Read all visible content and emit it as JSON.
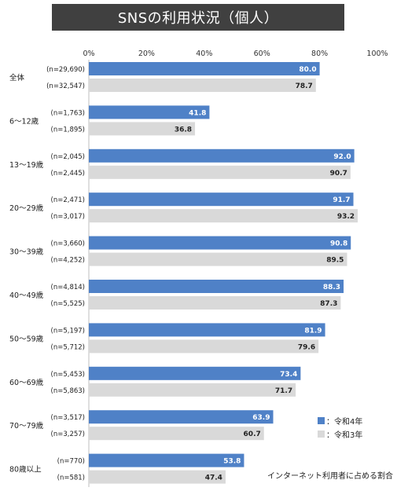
{
  "title": "SNSの利用状況（個人）",
  "note": "インターネット利用者に占める割合",
  "colors": {
    "r4": "#4f81c7",
    "r3": "#d9d9d9",
    "grid": "#bfbfbf",
    "title_bg": "#404040"
  },
  "chart_data": {
    "type": "bar",
    "orientation": "horizontal",
    "xlim": [
      0,
      100
    ],
    "x_ticks": [
      "0%",
      "20%",
      "40%",
      "60%",
      "80%",
      "100%"
    ],
    "categories": [
      "全体",
      "6～12歳",
      "13～19歳",
      "20～29歳",
      "30～39歳",
      "40～49歳",
      "50～59歳",
      "60～69歳",
      "70～79歳",
      "80歳以上"
    ],
    "series": [
      {
        "name": "：令和4年",
        "values": [
          80.0,
          41.8,
          92.0,
          91.7,
          90.8,
          88.3,
          81.9,
          73.4,
          63.9,
          53.8
        ],
        "n": [
          "(n=29,690)",
          "(n=1,763)",
          "(n=2,045)",
          "(n=2,471)",
          "(n=3,660)",
          "(n=4,814)",
          "(n=5,197)",
          "(n=5,453)",
          "(n=3,517)",
          "(n=770)"
        ]
      },
      {
        "name": "：令和3年",
        "values": [
          78.7,
          36.8,
          90.7,
          93.2,
          89.5,
          87.3,
          79.6,
          71.7,
          60.7,
          47.4
        ],
        "n": [
          "(n=32,547)",
          "(n=1,895)",
          "(n=2,445)",
          "(n=3,017)",
          "(n=4,252)",
          "(n=5,525)",
          "(n=5,712)",
          "(n=5,863)",
          "(n=3,257)",
          "(n=581)"
        ]
      }
    ],
    "legend_position": "bottom-right",
    "grid": false
  }
}
